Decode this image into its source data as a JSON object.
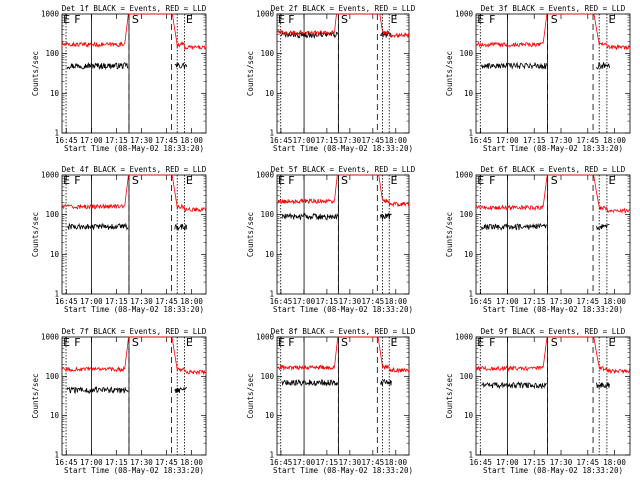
{
  "figure": {
    "background": "#ffffff"
  },
  "chart_data": [
    {
      "type": "line",
      "detector": "1f",
      "title": "Det 1f BLACK = Events, RED = LLD",
      "xlabel": "Start Time (08-May-02 18:33:20)",
      "ylabel": "Counts/sec",
      "y_scale": "log",
      "ylim": [
        1,
        1000
      ],
      "y_ticks": [
        1,
        10,
        100,
        1000
      ],
      "x_ticks": [
        "16:45",
        "17:00",
        "17:15",
        "17:30",
        "17:45",
        "18:00"
      ],
      "markers": [
        "E",
        "F",
        "S",
        "E"
      ],
      "series": [
        {
          "name": "Events",
          "color": "#000000",
          "base": 50
        },
        {
          "name": "LLD",
          "color": "#ff0000",
          "base": 170
        }
      ]
    },
    {
      "type": "line",
      "detector": "2f",
      "title": "Det 2f BLACK = Events, RED = LLD",
      "xlabel": "Start Time (08-May-02 18:33:20)",
      "ylabel": "Counts/sec",
      "y_scale": "log",
      "ylim": [
        1,
        1000
      ],
      "y_ticks": [
        1,
        10,
        100,
        1000
      ],
      "x_ticks": [
        "16:45",
        "17:00",
        "17:15",
        "17:30",
        "17:45",
        "18:00"
      ],
      "markers": [
        "E",
        "F",
        "S",
        "E"
      ],
      "series": [
        {
          "name": "Events",
          "color": "#000000",
          "base": 300
        },
        {
          "name": "LLD",
          "color": "#ff0000",
          "base": 340
        }
      ]
    },
    {
      "type": "line",
      "detector": "3f",
      "title": "Det 3f BLACK = Events, RED = LLD",
      "xlabel": "Start Time (08-May-02 18:33:20)",
      "ylabel": "Counts/sec",
      "y_scale": "log",
      "ylim": [
        1,
        1000
      ],
      "y_ticks": [
        1,
        10,
        100,
        1000
      ],
      "x_ticks": [
        "16:45",
        "17:00",
        "17:15",
        "17:30",
        "17:45",
        "18:00"
      ],
      "markers": [
        "E",
        "F",
        "S",
        "E"
      ],
      "series": [
        {
          "name": "Events",
          "color": "#000000",
          "base": 50
        },
        {
          "name": "LLD",
          "color": "#ff0000",
          "base": 170
        }
      ]
    },
    {
      "type": "line",
      "detector": "4f",
      "title": "Det 4f BLACK = Events, RED = LLD",
      "xlabel": "Start Time (08-May-02 18:33:20)",
      "ylabel": "Counts/sec",
      "y_scale": "log",
      "ylim": [
        1,
        1000
      ],
      "y_ticks": [
        1,
        10,
        100,
        1000
      ],
      "x_ticks": [
        "16:45",
        "17:00",
        "17:15",
        "17:30",
        "17:45",
        "18:00"
      ],
      "markers": [
        "E",
        "F",
        "S",
        "E"
      ],
      "series": [
        {
          "name": "Events",
          "color": "#000000",
          "base": 50
        },
        {
          "name": "LLD",
          "color": "#ff0000",
          "base": 160
        }
      ]
    },
    {
      "type": "line",
      "detector": "5f",
      "title": "Det 5f BLACK = Events, RED = LLD",
      "xlabel": "Start Time (08-May-02 18:33:20)",
      "ylabel": "Counts/sec",
      "y_scale": "log",
      "ylim": [
        1,
        1000
      ],
      "y_ticks": [
        1,
        10,
        100,
        1000
      ],
      "x_ticks": [
        "16:45",
        "17:00",
        "17:15",
        "17:30",
        "17:45",
        "18:00"
      ],
      "markers": [
        "E",
        "F",
        "S",
        "E"
      ],
      "series": [
        {
          "name": "Events",
          "color": "#000000",
          "base": 90
        },
        {
          "name": "LLD",
          "color": "#ff0000",
          "base": 220
        }
      ]
    },
    {
      "type": "line",
      "detector": "6f",
      "title": "Det 6f BLACK = Events, RED = LLD",
      "xlabel": "Start Time (08-May-02 18:33:20)",
      "ylabel": "Counts/sec",
      "y_scale": "log",
      "ylim": [
        1,
        1000
      ],
      "y_ticks": [
        1,
        10,
        100,
        1000
      ],
      "x_ticks": [
        "16:45",
        "17:00",
        "17:15",
        "17:30",
        "17:45",
        "18:00"
      ],
      "markers": [
        "E",
        "F",
        "S",
        "E"
      ],
      "series": [
        {
          "name": "Events",
          "color": "#000000",
          "base": 50
        },
        {
          "name": "LLD",
          "color": "#ff0000",
          "base": 150
        }
      ]
    },
    {
      "type": "line",
      "detector": "7f",
      "title": "Det 7f BLACK = Events, RED = LLD",
      "xlabel": "Start Time (08-May-02 18:33:20)",
      "ylabel": "Counts/sec",
      "y_scale": "log",
      "ylim": [
        1,
        1000
      ],
      "y_ticks": [
        1,
        10,
        100,
        1000
      ],
      "x_ticks": [
        "16:45",
        "17:00",
        "17:15",
        "17:30",
        "17:45",
        "18:00"
      ],
      "markers": [
        "E",
        "F",
        "S",
        "E"
      ],
      "series": [
        {
          "name": "Events",
          "color": "#000000",
          "base": 45
        },
        {
          "name": "LLD",
          "color": "#ff0000",
          "base": 150
        }
      ]
    },
    {
      "type": "line",
      "detector": "8f",
      "title": "Det 8f BLACK = Events, RED = LLD",
      "xlabel": "Start Time (08-May-02 18:33:20)",
      "ylabel": "Counts/sec",
      "y_scale": "log",
      "ylim": [
        1,
        1000
      ],
      "y_ticks": [
        1,
        10,
        100,
        1000
      ],
      "x_ticks": [
        "16:45",
        "17:00",
        "17:15",
        "17:30",
        "17:45",
        "18:00"
      ],
      "markers": [
        "E",
        "F",
        "S",
        "E"
      ],
      "series": [
        {
          "name": "Events",
          "color": "#000000",
          "base": 70
        },
        {
          "name": "LLD",
          "color": "#ff0000",
          "base": 170
        }
      ]
    },
    {
      "type": "line",
      "detector": "9f",
      "title": "Det 9f BLACK = Events, RED = LLD",
      "xlabel": "Start Time (08-May-02 18:33:20)",
      "ylabel": "Counts/sec",
      "y_scale": "log",
      "ylim": [
        1,
        1000
      ],
      "y_ticks": [
        1,
        10,
        100,
        1000
      ],
      "x_ticks": [
        "16:45",
        "17:00",
        "17:15",
        "17:30",
        "17:45",
        "18:00"
      ],
      "markers": [
        "E",
        "F",
        "S",
        "E"
      ],
      "series": [
        {
          "name": "Events",
          "color": "#000000",
          "base": 60
        },
        {
          "name": "LLD",
          "color": "#ff0000",
          "base": 160
        }
      ]
    }
  ]
}
